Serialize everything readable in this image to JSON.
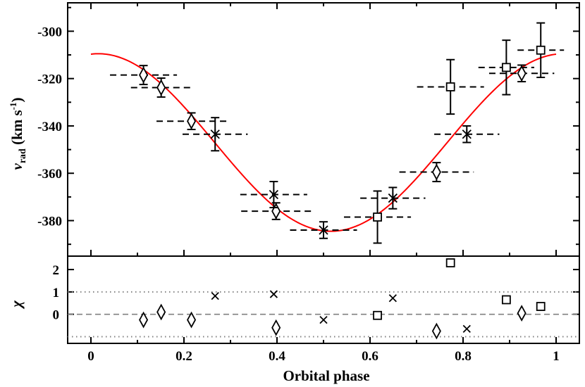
{
  "chart_data": [
    {
      "type": "scatter",
      "panel": "top",
      "xlabel": "Orbital phase",
      "ylabel_main": "v",
      "ylabel_sub": "rad",
      "ylabel_units_pre": " (km s",
      "ylabel_units_sup": "-1",
      "ylabel_units_post": ")",
      "xlim": [
        -0.05,
        1.05
      ],
      "ylim": [
        -395,
        -288
      ],
      "xticks": [
        0,
        0.2,
        0.4,
        0.6,
        0.8,
        1
      ],
      "xtick_labels": [
        "0",
        "0.2",
        "0.4",
        "0.6",
        "0.8",
        "1"
      ],
      "yticks": [
        -380,
        -360,
        -340,
        -320,
        -300
      ],
      "ytick_labels": [
        "-380",
        "-360",
        "-340",
        "-320",
        "-300"
      ],
      "model_curve": {
        "type": "sine",
        "gamma": -347,
        "K": 37.5,
        "phase_offset": 0.016,
        "color": "#ff0000"
      },
      "series": [
        {
          "marker": "diamond",
          "points": [
            {
              "x": 0.113,
              "y": -318.5,
              "yerr": 4,
              "xerr": 0.072
            },
            {
              "x": 0.151,
              "y": -323.8,
              "yerr": 4,
              "xerr": 0.065
            },
            {
              "x": 0.216,
              "y": -338.0,
              "yerr": 3.5,
              "xerr": 0.075
            },
            {
              "x": 0.398,
              "y": -376.0,
              "yerr": 3.5,
              "xerr": 0.075
            },
            {
              "x": 0.743,
              "y": -359.5,
              "yerr": 4,
              "xerr": 0.08
            },
            {
              "x": 0.926,
              "y": -317.8,
              "yerr": 3.5,
              "xerr": 0.07
            }
          ]
        },
        {
          "marker": "asterisk",
          "points": [
            {
              "x": 0.267,
              "y": -343.5,
              "yerr": 7,
              "xerr": 0.07
            },
            {
              "x": 0.393,
              "y": -369.0,
              "yerr": 5.5,
              "xerr": 0.072
            },
            {
              "x": 0.5,
              "y": -384.0,
              "yerr": 3.5,
              "xerr": 0.072
            },
            {
              "x": 0.649,
              "y": -370.5,
              "yerr": 4.5,
              "xerr": 0.07
            },
            {
              "x": 0.808,
              "y": -343.5,
              "yerr": 3.5,
              "xerr": 0.07
            }
          ]
        },
        {
          "marker": "square",
          "points": [
            {
              "x": 0.616,
              "y": -378.5,
              "yerr": 11,
              "xerr": 0.072
            },
            {
              "x": 0.773,
              "y": -323.5,
              "yerr": 11.5,
              "xerr": 0.072
            },
            {
              "x": 0.893,
              "y": -315.3,
              "yerr": 11.5,
              "xerr": 0.06
            },
            {
              "x": 0.967,
              "y": -308.0,
              "yerr": 11.5,
              "xerr": 0.05
            }
          ]
        }
      ]
    },
    {
      "type": "scatter",
      "panel": "bottom",
      "ylabel": "χ",
      "xlabel": "Orbital phase",
      "xlim": [
        -0.05,
        1.05
      ],
      "ylim": [
        -1.3,
        2.6
      ],
      "yticks": [
        0,
        1,
        2
      ],
      "ytick_labels": [
        "0",
        "1",
        "2"
      ],
      "reference_lines": [
        {
          "y": 0,
          "style": "dashed",
          "color": "#808080"
        },
        {
          "y": 1,
          "style": "dotted",
          "color": "#808080"
        },
        {
          "y": -1,
          "style": "dotted",
          "color": "#808080"
        }
      ],
      "series": [
        {
          "marker": "diamond",
          "points": [
            {
              "x": 0.113,
              "y": -0.25
            },
            {
              "x": 0.151,
              "y": 0.1
            },
            {
              "x": 0.216,
              "y": -0.25
            },
            {
              "x": 0.398,
              "y": -0.6
            },
            {
              "x": 0.743,
              "y": -0.75
            },
            {
              "x": 0.926,
              "y": 0.05
            }
          ]
        },
        {
          "marker": "cross",
          "points": [
            {
              "x": 0.267,
              "y": 0.82
            },
            {
              "x": 0.393,
              "y": 0.9
            },
            {
              "x": 0.5,
              "y": -0.25
            },
            {
              "x": 0.649,
              "y": 0.72
            },
            {
              "x": 0.808,
              "y": -0.65
            }
          ]
        },
        {
          "marker": "square",
          "points": [
            {
              "x": 0.616,
              "y": -0.05
            },
            {
              "x": 0.773,
              "y": 2.3
            },
            {
              "x": 0.893,
              "y": 0.65
            },
            {
              "x": 0.967,
              "y": 0.35
            }
          ]
        }
      ]
    }
  ]
}
